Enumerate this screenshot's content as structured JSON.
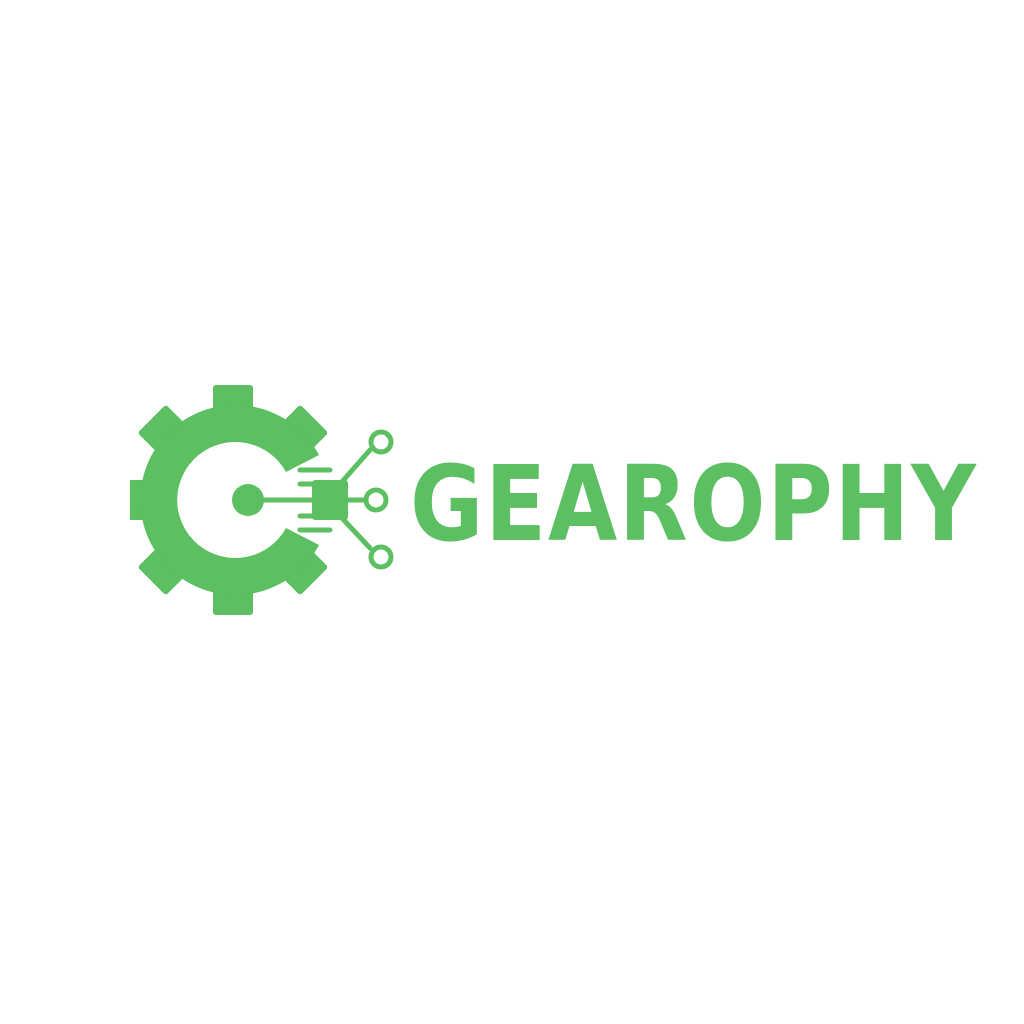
{
  "brand": {
    "name": "GEAROPHY",
    "color": "#5cbf62",
    "background": "#ffffff"
  },
  "icons": {
    "mark": "gear-circuit-icon"
  }
}
